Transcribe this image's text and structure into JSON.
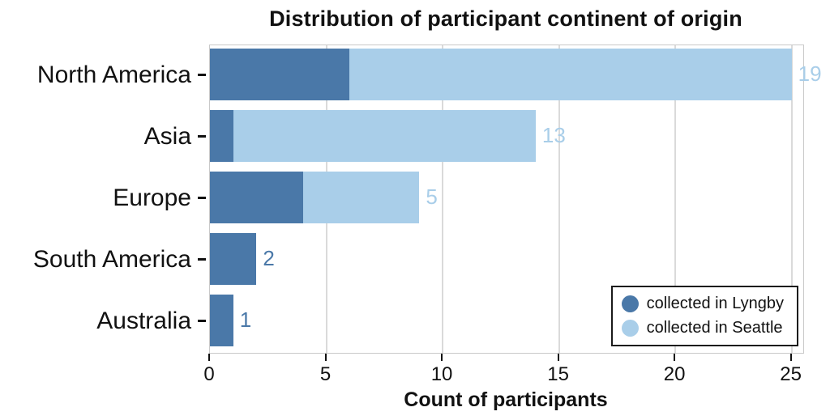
{
  "chart_data": {
    "type": "bar",
    "orientation": "horizontal",
    "stacked": true,
    "title": "Distribution of participant continent of origin",
    "xlabel": "Count of participants",
    "ylabel": "",
    "categories": [
      "North America",
      "Asia",
      "Europe",
      "South America",
      "Australia"
    ],
    "series": [
      {
        "name": "collected in Lyngby",
        "color": "#4a78a8",
        "values": [
          6,
          1,
          4,
          2,
          1
        ]
      },
      {
        "name": "collected in Seattle",
        "color": "#a9cee9",
        "values": [
          19,
          13,
          5,
          0,
          0
        ]
      }
    ],
    "xlim": [
      0,
      25.5
    ],
    "xticks": [
      0,
      5,
      10,
      15,
      20,
      25
    ],
    "grid": true,
    "legend_position": "bottom-right"
  },
  "colors": {
    "gridline": "#dadada",
    "axis_border": "#c9c9c9",
    "tick": "#111111",
    "text": "#111111",
    "background": "#ffffff"
  }
}
